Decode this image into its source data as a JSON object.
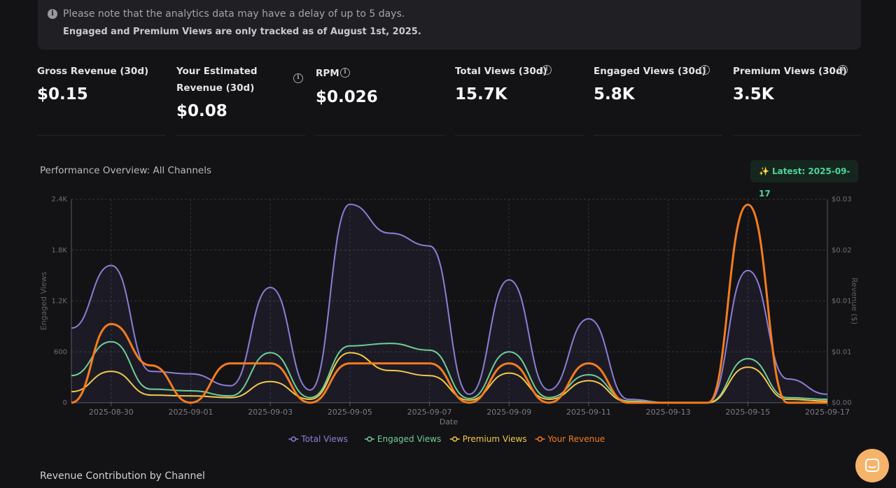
{
  "notice": {
    "line1": "Please note that the analytics data may have a delay of up to 5 days.",
    "line2": "Engaged and Premium Views are only tracked as of August 1st, 2025."
  },
  "metrics": [
    {
      "label": "Gross Revenue (30d)",
      "value": "$0.15",
      "info": false
    },
    {
      "label": "Your Estimated Revenue (30d)",
      "value": "$0.08",
      "info": true
    },
    {
      "label": "RPM",
      "value": "$0.026",
      "info": true
    },
    {
      "label": "Total Views (30d)",
      "value": "15.7K",
      "info": true
    },
    {
      "label": "Engaged Views (30d)",
      "value": "5.8K",
      "info": true
    },
    {
      "label": "Premium Views (30d)",
      "value": "3.5K",
      "info": true
    }
  ],
  "chart_section": {
    "title": "Performance Overview: All Channels",
    "latest_badge": "Latest: 2025-09-17"
  },
  "chart_data": {
    "type": "line",
    "xlabel": "Date",
    "ylabel_left": "Engaged Views",
    "ylabel_right": "Revenue ($)",
    "x": [
      "2025-08-29",
      "2025-08-30",
      "2025-08-31",
      "2025-09-01",
      "2025-09-02",
      "2025-09-03",
      "2025-09-04",
      "2025-09-05",
      "2025-09-06",
      "2025-09-07",
      "2025-09-08",
      "2025-09-09",
      "2025-09-10",
      "2025-09-11",
      "2025-09-12",
      "2025-09-13",
      "2025-09-14",
      "2025-09-15",
      "2025-09-16",
      "2025-09-17"
    ],
    "x_tick_labels": [
      "2025-08-30",
      "2025-09-01",
      "2025-09-03",
      "2025-09-05",
      "2025-09-07",
      "2025-09-09",
      "2025-09-11",
      "2025-09-13",
      "2025-09-15",
      "2025-09-17"
    ],
    "y_left_ticks": [
      "0",
      "600",
      "1.2K",
      "1.8K",
      "2.4K"
    ],
    "y_left_range": [
      0,
      2400
    ],
    "y_right_ticks": [
      "$0.00",
      "$0.01",
      "$0.01",
      "$0.02",
      "$0.03"
    ],
    "y_right_range": [
      0,
      0.03
    ],
    "grid": true,
    "legend_position": "bottom",
    "series": [
      {
        "name": "Total Views",
        "axis": "left",
        "color": "#8b7fd6",
        "values": [
          880,
          1620,
          370,
          340,
          200,
          1360,
          150,
          2340,
          2000,
          1850,
          100,
          1450,
          150,
          990,
          40,
          0,
          0,
          1560,
          280,
          100
        ]
      },
      {
        "name": "Engaged Views",
        "axis": "left",
        "color": "#6fcf97",
        "values": [
          320,
          720,
          160,
          140,
          80,
          590,
          60,
          670,
          700,
          620,
          50,
          600,
          60,
          330,
          20,
          0,
          0,
          520,
          60,
          40
        ]
      },
      {
        "name": "Premium Views",
        "axis": "left",
        "color": "#f2c94c",
        "values": [
          130,
          370,
          90,
          80,
          60,
          250,
          40,
          590,
          380,
          320,
          30,
          350,
          40,
          260,
          10,
          0,
          0,
          420,
          40,
          20
        ]
      },
      {
        "name": "Your Revenue",
        "axis": "right",
        "color": "#f57c1f",
        "values": [
          0,
          0.0116,
          0.0055,
          0,
          0.0058,
          0.0058,
          0,
          0.0058,
          0.0058,
          0.0058,
          0,
          0.0058,
          0,
          0.0058,
          0,
          0,
          0,
          0.0292,
          0,
          0
        ]
      }
    ]
  },
  "section2": {
    "title": "Revenue Contribution by Channel"
  },
  "chat": {
    "icon": "chat-icon"
  }
}
